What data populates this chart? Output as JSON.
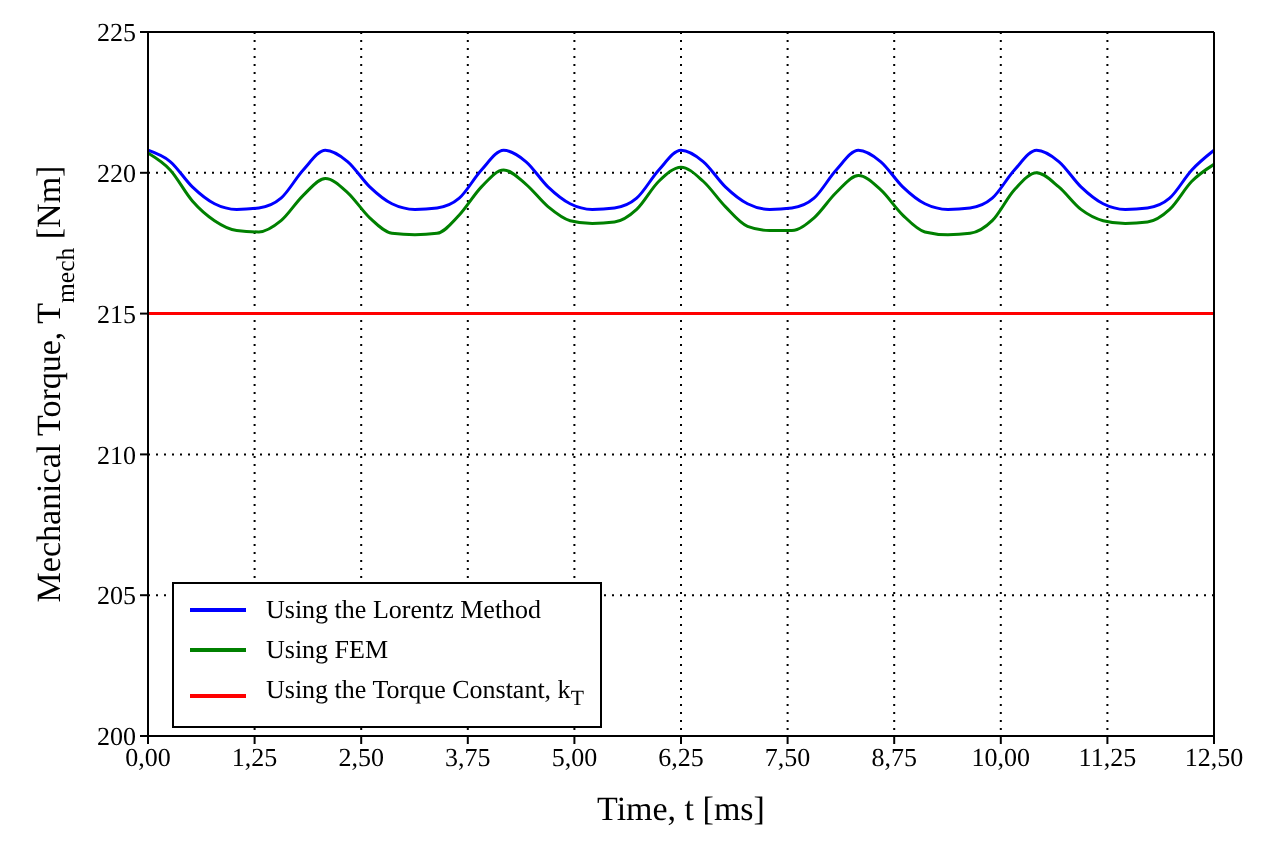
{
  "chart_data": {
    "type": "line",
    "xlabel": "Time, t [ms]",
    "ylabel": "Mechanical Torque, T$_{mech}$ [Nm]",
    "xlim": [
      0,
      12.5
    ],
    "ylim": [
      200,
      225
    ],
    "xticks": [
      {
        "value": 0,
        "label": "0,00"
      },
      {
        "value": 1.25,
        "label": "1,25"
      },
      {
        "value": 2.5,
        "label": "2,50"
      },
      {
        "value": 3.75,
        "label": "3,75"
      },
      {
        "value": 5,
        "label": "5,00"
      },
      {
        "value": 6.25,
        "label": "6,25"
      },
      {
        "value": 7.5,
        "label": "7,50"
      },
      {
        "value": 8.75,
        "label": "8,75"
      },
      {
        "value": 10,
        "label": "10,00"
      },
      {
        "value": 11.25,
        "label": "11,25"
      },
      {
        "value": 12.5,
        "label": "12,50"
      }
    ],
    "yticks": [
      200,
      205,
      210,
      215,
      220,
      225
    ],
    "grid": true,
    "legend": "bottom left",
    "line_style": "solid",
    "marker": "none",
    "x": [
      0,
      0.26,
      0.52,
      0.78,
      1.04,
      1.3,
      1.56,
      1.82,
      2.08,
      2.34,
      2.6,
      2.86,
      3.13,
      3.39,
      3.65,
      3.91,
      4.17,
      4.43,
      4.69,
      4.95,
      5.21,
      5.47,
      5.73,
      5.99,
      6.25,
      6.51,
      6.77,
      7.03,
      7.29,
      7.55,
      7.81,
      8.07,
      8.33,
      8.59,
      8.85,
      9.11,
      9.38,
      9.64,
      9.9,
      10.16,
      10.42,
      10.68,
      10.94,
      11.2,
      11.46,
      11.72,
      11.98,
      12.24,
      12.5
    ],
    "series": [
      {
        "name": "Using the Lorentz Method",
        "color": "#0000ff",
        "values": [
          220.8,
          220.4,
          219.5,
          218.9,
          218.7,
          218.75,
          219.1,
          220.1,
          220.8,
          220.4,
          219.5,
          218.9,
          218.7,
          218.75,
          219.1,
          220.1,
          220.8,
          220.4,
          219.5,
          218.9,
          218.7,
          218.75,
          219.1,
          220.1,
          220.8,
          220.4,
          219.5,
          218.9,
          218.7,
          218.75,
          219.1,
          220.1,
          220.8,
          220.4,
          219.5,
          218.9,
          218.7,
          218.75,
          219.1,
          220.1,
          220.8,
          220.4,
          219.5,
          218.9,
          218.7,
          218.75,
          219.1,
          220.1,
          220.8
        ]
      },
      {
        "name": "Using FEM",
        "color": "#008000",
        "values": [
          220.7,
          220.1,
          219.0,
          218.3,
          217.95,
          217.9,
          218.3,
          219.2,
          219.8,
          219.3,
          218.4,
          217.85,
          217.8,
          217.85,
          218.5,
          219.5,
          220.1,
          219.6,
          218.8,
          218.3,
          218.2,
          218.25,
          218.7,
          219.7,
          220.2,
          219.7,
          218.8,
          218.1,
          217.95,
          217.95,
          218.4,
          219.3,
          219.9,
          219.4,
          218.5,
          217.9,
          217.8,
          217.85,
          218.3,
          219.4,
          220.0,
          219.5,
          218.7,
          218.3,
          218.2,
          218.25,
          218.7,
          219.7,
          220.3
        ]
      },
      {
        "name": "Using the Torque Constant, k$_{T}$",
        "color": "#ff0000",
        "x": [
          0,
          12.5
        ],
        "values": [
          215,
          215
        ]
      }
    ]
  }
}
